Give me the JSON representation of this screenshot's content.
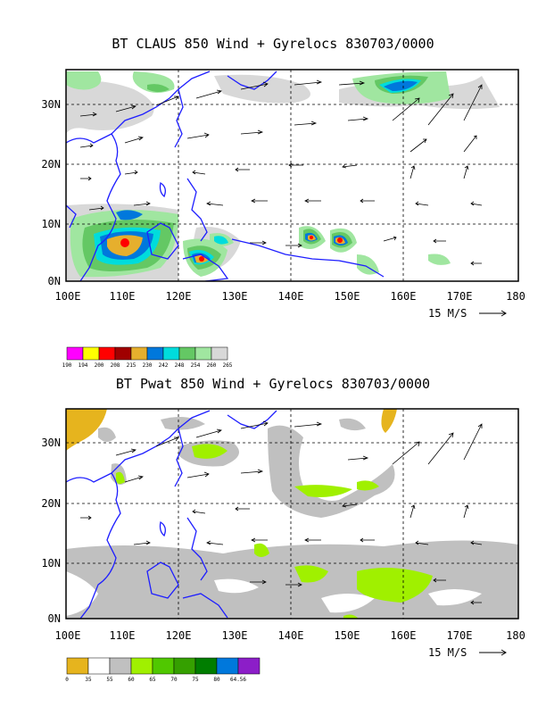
{
  "panels": [
    {
      "title": "BT CLAUS 850 Wind + Gyrelocs 830703/0000",
      "legend": {
        "colors": [
          "#ff00ff",
          "#ffff00",
          "#ff0000",
          "#a00000",
          "#e6af2d",
          "#0078dc",
          "#00dcdc",
          "#64c864",
          "#a0e6a0",
          "#d8d8d8"
        ],
        "labels": [
          "190",
          "194",
          "200",
          "208",
          "215",
          "230",
          "242",
          "248",
          "254",
          "260",
          "265"
        ]
      }
    },
    {
      "title": "BT Pwat 850 Wind + Gyrelocs 830703/0000",
      "legend": {
        "colors": [
          "#e6b41e",
          "#ffffff",
          "#c0c0c0",
          "#a0f000",
          "#50c800",
          "#35a000",
          "#007d00",
          "#0078dc",
          "#8c1ec8"
        ],
        "labels": [
          "0",
          "35",
          "55",
          "60",
          "65",
          "70",
          "75",
          "80",
          "64.56"
        ]
      }
    }
  ],
  "axes": {
    "lon_labels": [
      "100E",
      "110E",
      "120E",
      "130E",
      "140E",
      "150E",
      "160E",
      "170E",
      "180"
    ],
    "lat_labels": [
      "0N",
      "10N",
      "20N",
      "30N"
    ]
  },
  "vector_ref": {
    "label": "15 M/S"
  }
}
